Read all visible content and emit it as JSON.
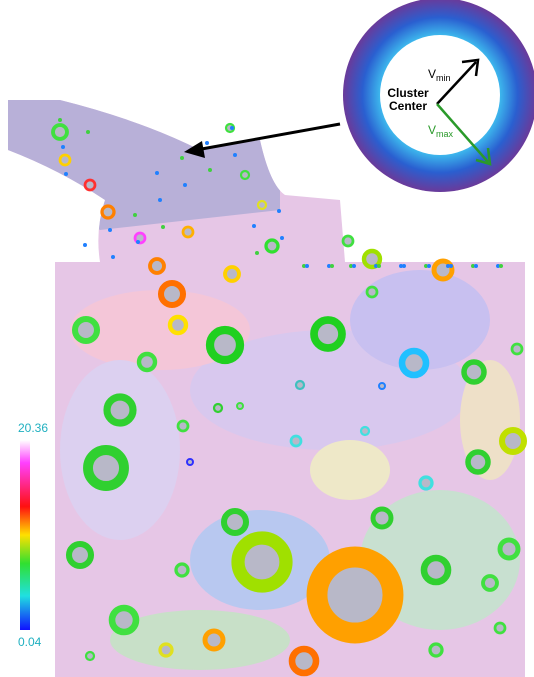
{
  "inset": {
    "vmin": {
      "main": "V",
      "sub": "min"
    },
    "cluster_center": [
      "Cluster",
      "Center"
    ],
    "vmax": {
      "main": "V",
      "sub": "max"
    }
  },
  "colorbar": {
    "max": "20.36",
    "min": "0.04"
  }
}
